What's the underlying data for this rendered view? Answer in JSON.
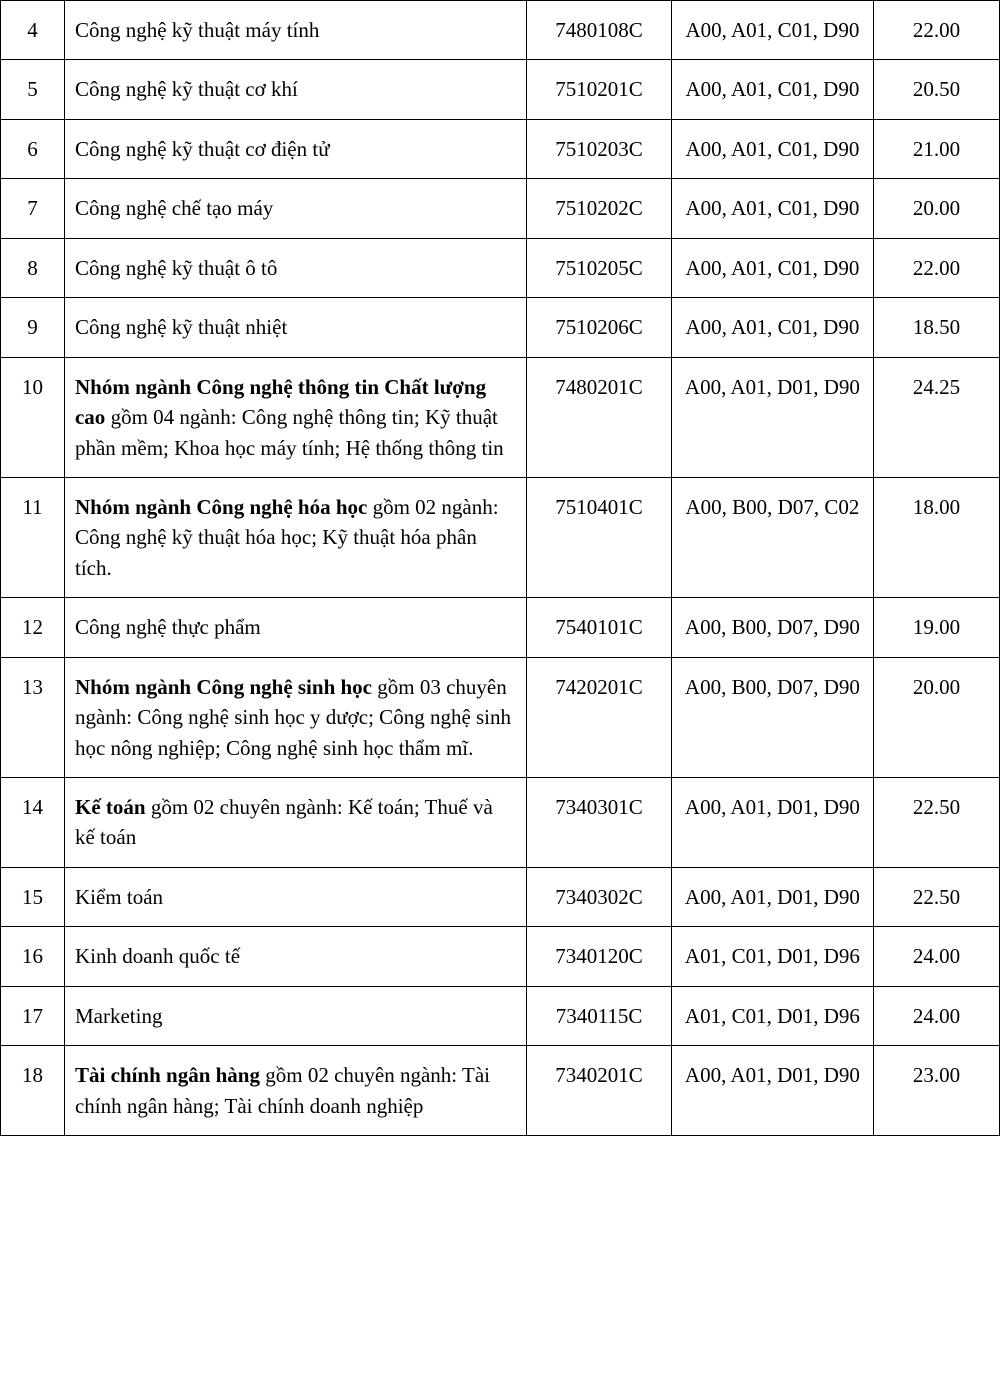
{
  "table": {
    "columns": {
      "number_width": 62,
      "name_width": 448,
      "code_width": 140,
      "combo_width": 196,
      "score_width": 122
    },
    "styling": {
      "border_color": "#000000",
      "border_width": 1.5,
      "font_family": "Times New Roman",
      "font_size": 21,
      "line_height": 1.45,
      "cell_padding": "14px 10px",
      "background": "#ffffff",
      "text_color": "#000000"
    },
    "rows": [
      {
        "num": "4",
        "name_plain": "Công nghệ kỹ thuật máy tính",
        "code": "7480108C",
        "combo": "A00, A01, C01, D90",
        "score": "22.00"
      },
      {
        "num": "5",
        "name_plain": "Công nghệ kỹ thuật cơ khí",
        "code": "7510201C",
        "combo": "A00, A01, C01, D90",
        "score": "20.50"
      },
      {
        "num": "6",
        "name_plain": "Công nghệ kỹ thuật cơ điện tử",
        "code": "7510203C",
        "combo": "A00, A01, C01, D90",
        "score": "21.00"
      },
      {
        "num": "7",
        "name_plain": "Công nghệ chế tạo máy",
        "code": "7510202C",
        "combo": "A00, A01, C01, D90",
        "score": "20.00"
      },
      {
        "num": "8",
        "name_plain": "Công nghệ kỹ thuật ô tô",
        "code": "7510205C",
        "combo": "A00, A01, C01, D90",
        "score": "22.00"
      },
      {
        "num": "9",
        "name_plain": "Công nghệ kỹ thuật nhiệt",
        "code": "7510206C",
        "combo": "A00, A01, C01, D90",
        "score": "18.50"
      },
      {
        "num": "10",
        "name_bold": "Nhóm ngành Công nghệ thông tin Chất lượng cao",
        "name_rest": " gồm 04 ngành: Công nghệ thông tin; Kỹ thuật phần mềm; Khoa học máy tính; Hệ thống thông tin",
        "justify": true,
        "code": "7480201C",
        "combo": "A00, A01, D01, D90",
        "score": "24.25"
      },
      {
        "num": "11",
        "name_bold": "Nhóm ngành Công nghệ hóa học",
        "name_rest": " gồm 02 ngành: Công nghệ kỹ thuật hóa học; Kỹ thuật hóa phân tích.",
        "justify": true,
        "code": "7510401C",
        "combo": "A00, B00, D07, C02",
        "score": "18.00"
      },
      {
        "num": "12",
        "name_plain": "Công nghệ thực phẩm",
        "code": "7540101C",
        "combo": "A00, B00, D07, D90",
        "score": "19.00"
      },
      {
        "num": "13",
        "name_bold": "Nhóm ngành Công nghệ sinh học",
        "name_rest": " gồm 03 chuyên ngành: Công nghệ sinh học y dược; Công nghệ sinh học nông nghiệp; Công nghệ sinh học thẩm mĩ.",
        "justify": true,
        "code": "7420201C",
        "combo": "A00, B00, D07, D90",
        "score": "20.00"
      },
      {
        "num": "14",
        "name_bold": "Kế toán",
        "name_rest": " gồm 02 chuyên ngành: Kế toán; Thuế và kế toán",
        "justify": true,
        "code": "7340301C",
        "combo": "A00, A01, D01, D90",
        "score": "22.50"
      },
      {
        "num": "15",
        "name_plain": "Kiểm toán",
        "code": "7340302C",
        "combo": "A00, A01, D01, D90",
        "score": "22.50"
      },
      {
        "num": "16",
        "name_plain": "Kinh doanh quốc tế",
        "code": "7340120C",
        "combo": "A01, C01, D01, D96",
        "score": "24.00"
      },
      {
        "num": "17",
        "name_plain": "Marketing",
        "code": "7340115C",
        "combo": "A01, C01, D01, D96",
        "score": "24.00"
      },
      {
        "num": "18",
        "name_bold": "Tài chính ngân hàng",
        "name_rest": " gồm 02 chuyên ngành: Tài chính ngân hàng; Tài chính doanh nghiệp",
        "justify": true,
        "code": "7340201C",
        "combo": "A00, A01, D01, D90",
        "score": "23.00"
      }
    ]
  }
}
